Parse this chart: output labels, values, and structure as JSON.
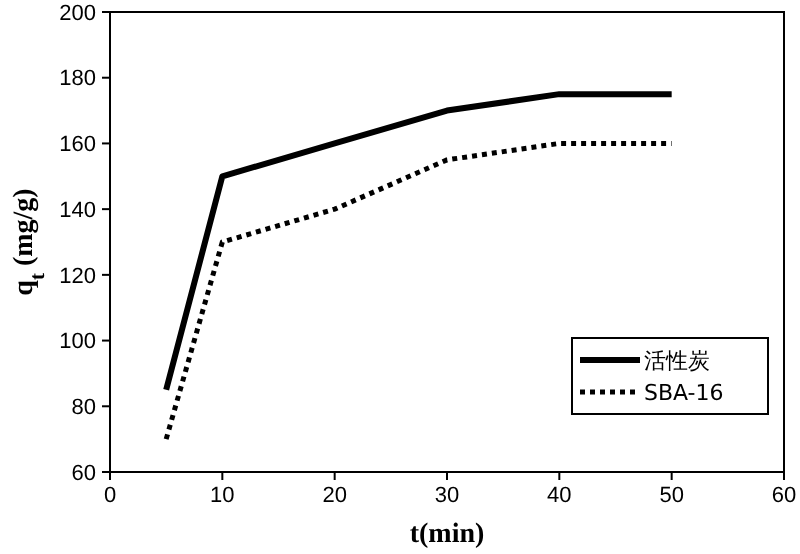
{
  "chart_data": {
    "type": "line",
    "xlabel": "t(min)",
    "ylabel": "q$_{t}$ (mg/g)",
    "x": [
      5,
      10,
      20,
      30,
      40,
      50
    ],
    "series": [
      {
        "name": "活性炭",
        "color": "#000000",
        "line_style": "solid",
        "values": [
          85,
          150,
          160,
          170,
          175,
          175
        ]
      },
      {
        "name": "SBA-16",
        "color": "#000000",
        "line_style": "dotted",
        "values": [
          70,
          130,
          140,
          155,
          160,
          160
        ]
      }
    ],
    "xlim": [
      0,
      60
    ],
    "xticks": [
      0,
      10,
      20,
      30,
      40,
      50,
      60
    ],
    "ylim": [
      60,
      200
    ],
    "yticks": [
      60,
      80,
      100,
      120,
      140,
      160,
      180,
      200
    ],
    "grid": false,
    "legend": "bottom right",
    "marker": "none"
  }
}
